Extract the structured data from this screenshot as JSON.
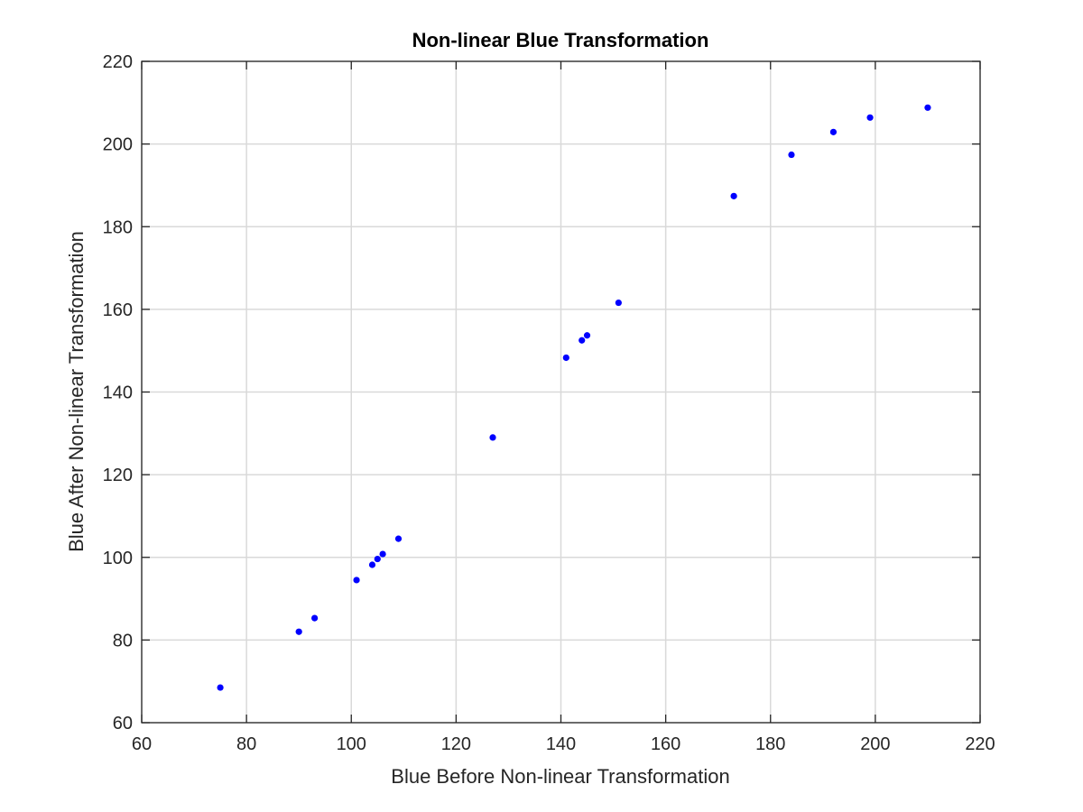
{
  "chart_data": {
    "type": "scatter",
    "title": "Non-linear Blue Transformation",
    "xlabel": "Blue Before Non-linear Transformation",
    "ylabel": "Blue After Non-linear Transformation",
    "xlim": [
      60,
      220
    ],
    "ylim": [
      60,
      220
    ],
    "xticks": [
      "60",
      "80",
      "100",
      "120",
      "140",
      "160",
      "180",
      "200",
      "220"
    ],
    "yticks": [
      "60",
      "80",
      "100",
      "120",
      "140",
      "160",
      "180",
      "200",
      "220"
    ],
    "grid": true,
    "marker_color": "#0000ff",
    "series": [
      {
        "x": [
          75,
          90,
          93,
          101,
          104,
          105,
          106,
          109,
          127,
          141,
          144,
          145,
          151,
          173,
          184,
          192,
          199,
          210
        ],
        "y": [
          68.5,
          82,
          85.3,
          94.5,
          98.2,
          99.6,
          100.8,
          104.5,
          129,
          148.3,
          152.5,
          153.7,
          161.6,
          187.4,
          197.4,
          202.9,
          206.4,
          208.8
        ]
      }
    ]
  }
}
